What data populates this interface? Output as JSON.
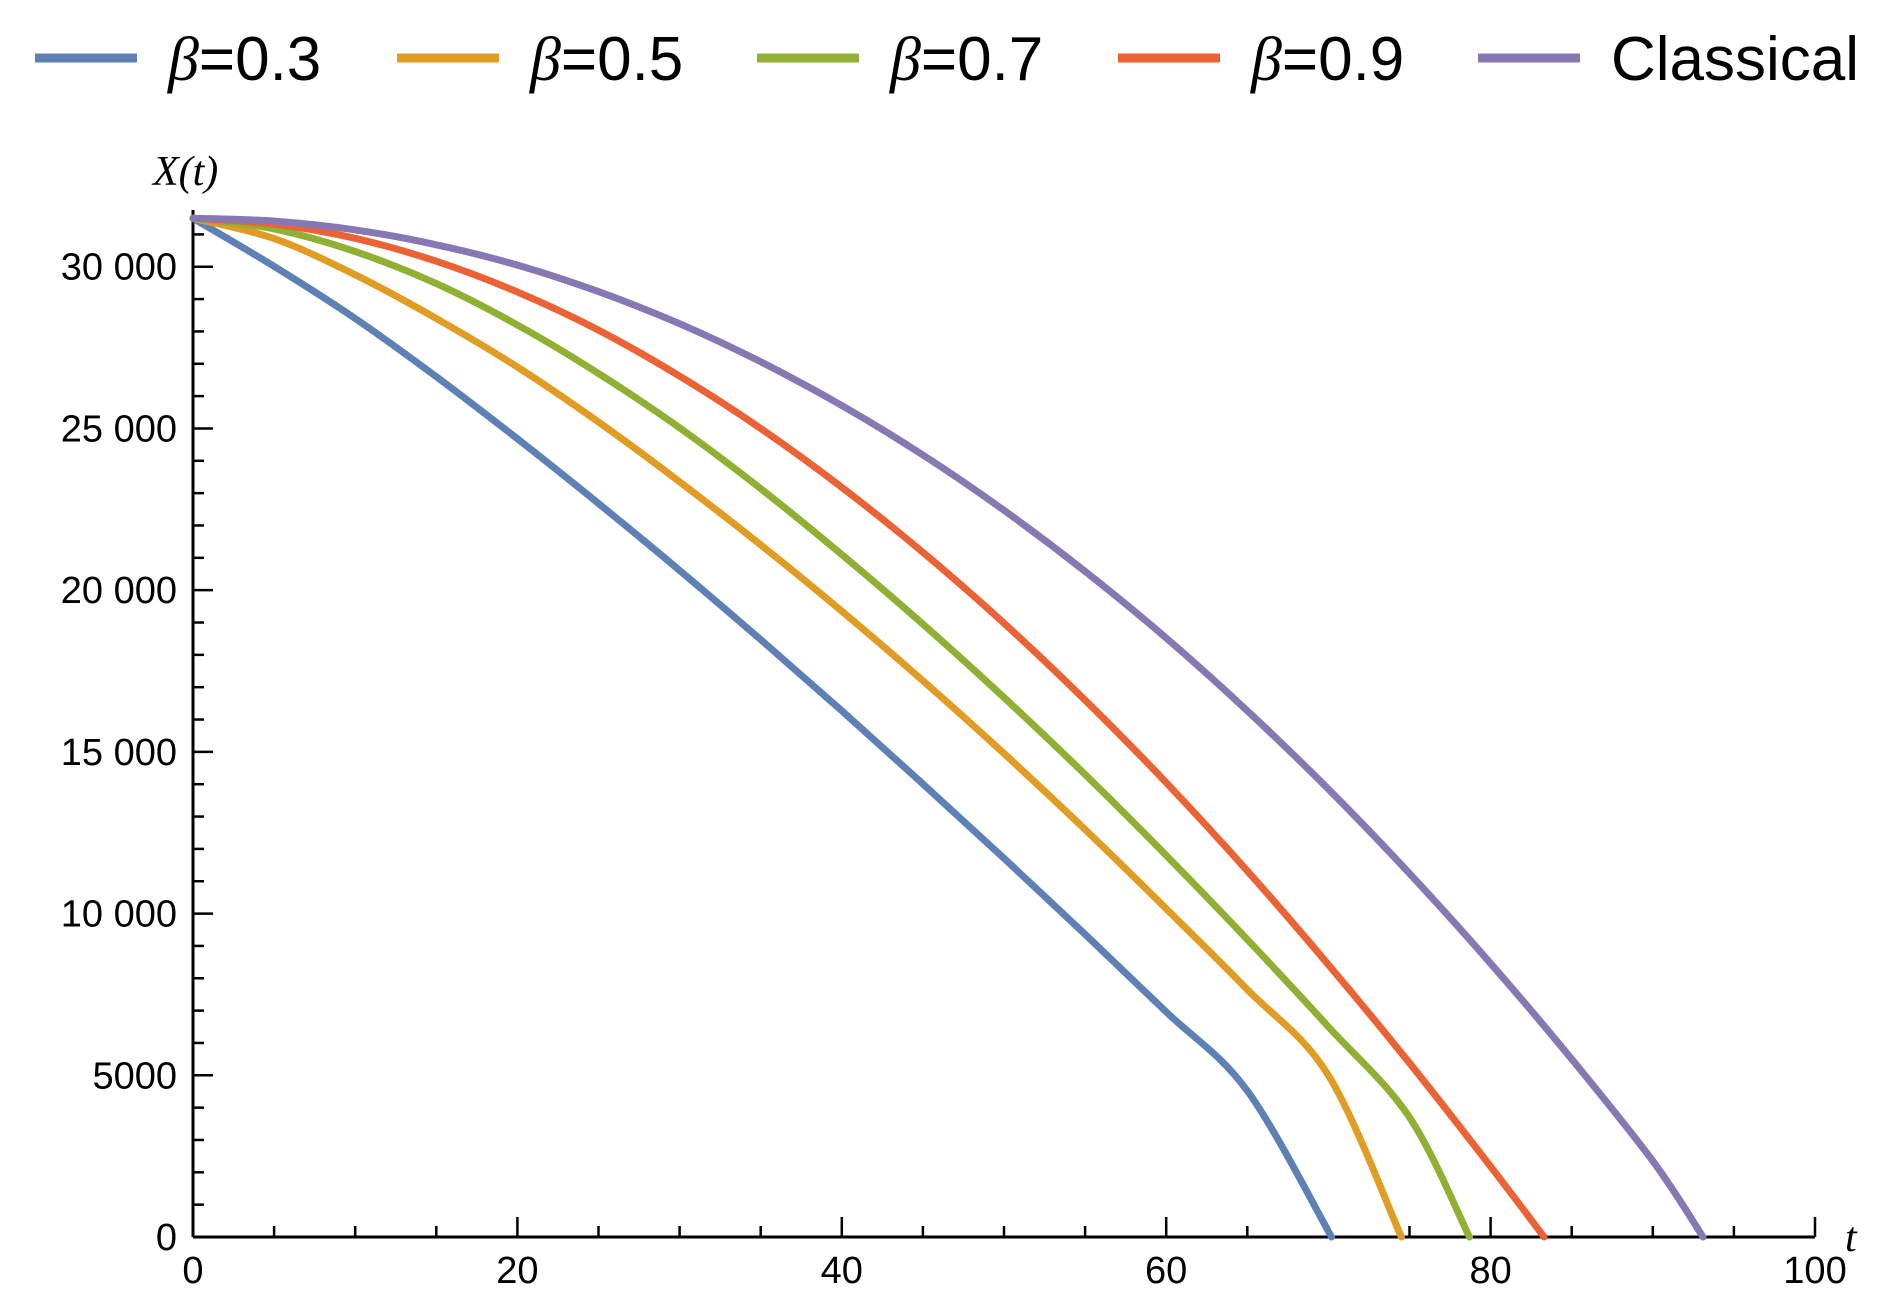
{
  "chart_data": {
    "type": "line",
    "title": "",
    "xlabel": "t",
    "ylabel": "X(t)",
    "xlim": [
      0,
      100
    ],
    "ylim": [
      0,
      31600
    ],
    "grid": false,
    "legend_position": "top",
    "x_ticks": [
      0,
      20,
      40,
      60,
      80,
      100
    ],
    "x_tick_labels": [
      "0",
      "20",
      "40",
      "60",
      "80",
      "100"
    ],
    "y_ticks": [
      0,
      5000,
      10000,
      15000,
      20000,
      25000,
      30000
    ],
    "y_tick_labels": [
      "0",
      "5000",
      "10 000",
      "15 000",
      "20 000",
      "25 000",
      "30 000"
    ],
    "series": [
      {
        "name": "β=0.3",
        "color": "#5e81b5",
        "x": [
          0,
          5,
          10,
          15,
          20,
          25,
          30,
          35,
          40,
          45,
          50,
          55,
          60,
          65,
          70.2
        ],
        "y": [
          31500,
          30010,
          28400,
          26600,
          24680,
          22680,
          20610,
          18470,
          16270,
          14010,
          11710,
          9360,
          6960,
          4520,
          0
        ]
      },
      {
        "name": "β=0.5",
        "color": "#e19c24",
        "x": [
          0,
          5,
          10,
          15,
          20,
          25,
          30,
          35,
          40,
          45,
          50,
          55,
          60,
          65,
          70,
          74.5
        ],
        "y": [
          31500,
          30870,
          29750,
          28400,
          26900,
          25200,
          23350,
          21400,
          19350,
          17200,
          14950,
          12600,
          10150,
          7650,
          5000,
          0
        ]
      },
      {
        "name": "β=0.7",
        "color": "#8fb032",
        "x": [
          0,
          5,
          10,
          15,
          20,
          25,
          30,
          35,
          40,
          45,
          50,
          55,
          60,
          65,
          70,
          75,
          78.7
        ],
        "y": [
          31500,
          31170,
          30470,
          29480,
          28200,
          26700,
          25020,
          23140,
          21100,
          18950,
          16680,
          14300,
          11800,
          9200,
          6500,
          3700,
          0
        ]
      },
      {
        "name": "β=0.9",
        "color": "#eb6235",
        "x": [
          0,
          5,
          10,
          15,
          20,
          25,
          30,
          35,
          40,
          45,
          50,
          55,
          60,
          65,
          70,
          75,
          80,
          83.3
        ],
        "y": [
          31500,
          31320,
          30880,
          30170,
          29220,
          28040,
          26620,
          25000,
          23180,
          21170,
          18980,
          16600,
          14050,
          11320,
          8420,
          5380,
          2180,
          0
        ]
      },
      {
        "name": "Classical",
        "color": "#8778b3",
        "x": [
          0,
          5,
          10,
          15,
          20,
          25,
          30,
          35,
          40,
          45,
          50,
          55,
          60,
          65,
          70,
          75,
          80,
          85,
          90,
          93.1
        ],
        "y": [
          31500,
          31410,
          31140,
          30680,
          30050,
          29230,
          28240,
          27060,
          25710,
          24180,
          22470,
          20580,
          18520,
          16270,
          13850,
          11240,
          8460,
          5500,
          2350,
          0
        ]
      }
    ]
  }
}
